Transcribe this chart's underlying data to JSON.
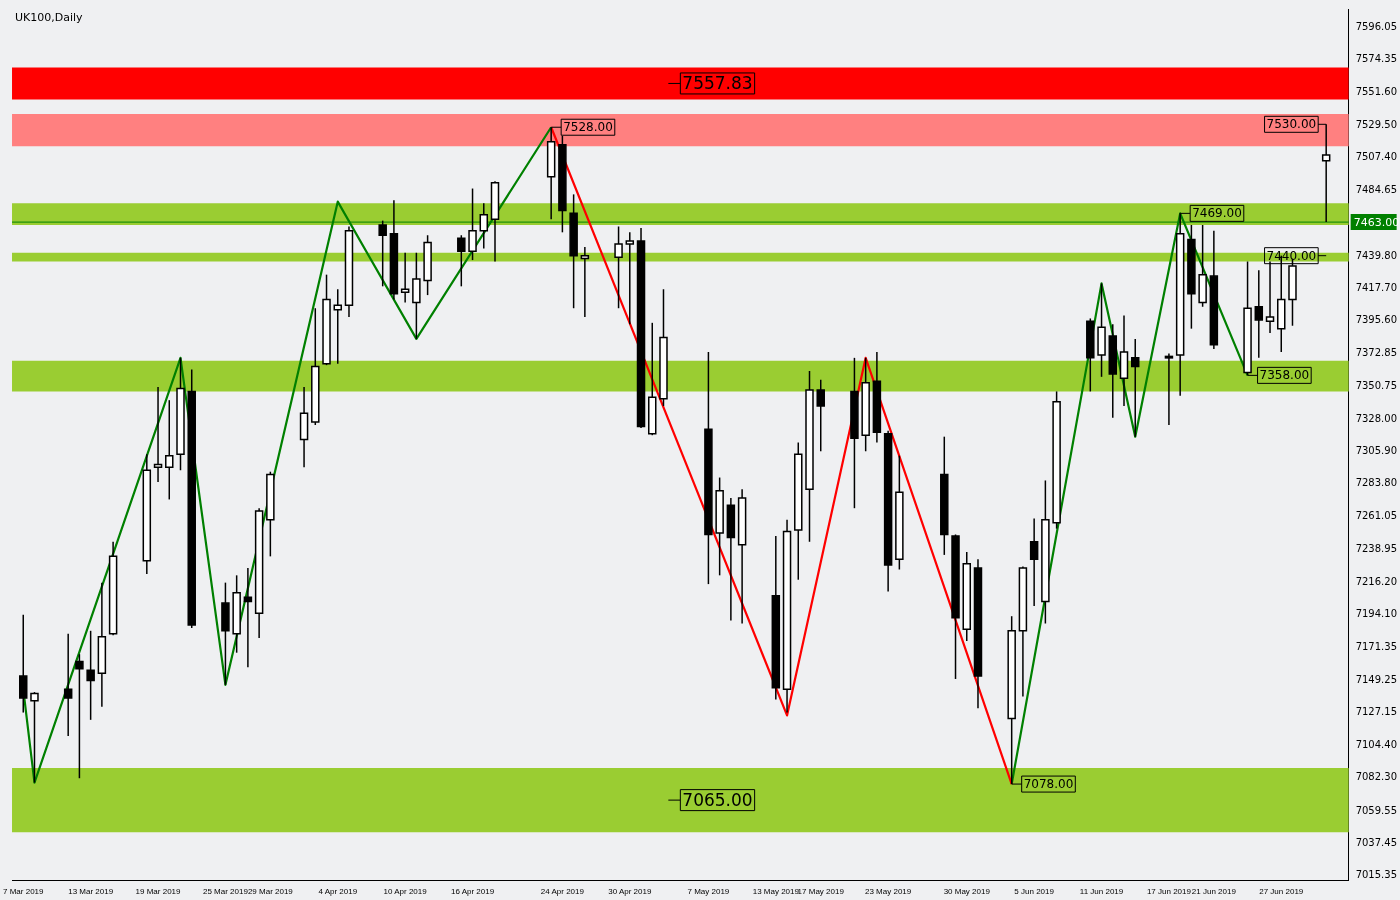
{
  "chart_data": {
    "type": "candlestick",
    "title": "UK100,Daily",
    "x": [
      "2019-03-07",
      "2019-03-08",
      "2019-03-11",
      "2019-03-12",
      "2019-03-13",
      "2019-03-14",
      "2019-03-15",
      "2019-03-18",
      "2019-03-19",
      "2019-03-20",
      "2019-03-21",
      "2019-03-22",
      "2019-03-25",
      "2019-03-26",
      "2019-03-27",
      "2019-03-28",
      "2019-03-29",
      "2019-04-01",
      "2019-04-02",
      "2019-04-03",
      "2019-04-04",
      "2019-04-05",
      "2019-04-08",
      "2019-04-09",
      "2019-04-10",
      "2019-04-11",
      "2019-04-12",
      "2019-04-15",
      "2019-04-16",
      "2019-04-17",
      "2019-04-18",
      "2019-04-23",
      "2019-04-24",
      "2019-04-25",
      "2019-04-26",
      "2019-04-29",
      "2019-04-30",
      "2019-05-01",
      "2019-05-02",
      "2019-05-03",
      "2019-05-07",
      "2019-05-08",
      "2019-05-09",
      "2019-05-10",
      "2019-05-13",
      "2019-05-14",
      "2019-05-15",
      "2019-05-16",
      "2019-05-17",
      "2019-05-20",
      "2019-05-21",
      "2019-05-22",
      "2019-05-23",
      "2019-05-24",
      "2019-05-28",
      "2019-05-29",
      "2019-05-30",
      "2019-05-31",
      "2019-06-03",
      "2019-06-04",
      "2019-06-05",
      "2019-06-06",
      "2019-06-07",
      "2019-06-10",
      "2019-06-11",
      "2019-06-12",
      "2019-06-13",
      "2019-06-14",
      "2019-06-17",
      "2019-06-18",
      "2019-06-19",
      "2019-06-20",
      "2019-06-21",
      "2019-06-24",
      "2019-06-25",
      "2019-06-26",
      "2019-06-27",
      "2019-06-28",
      "2019-07-01"
    ],
    "ohlc": [
      [
        7152,
        7194,
        7127,
        7137
      ],
      [
        7135,
        7141,
        7079,
        7140
      ],
      [
        7143,
        7181,
        7111,
        7137
      ],
      [
        7162,
        7167,
        7082,
        7157
      ],
      [
        7156,
        7183,
        7122,
        7149
      ],
      [
        7154,
        7216,
        7131,
        7179
      ],
      [
        7181,
        7244,
        7180,
        7234
      ],
      [
        7231,
        7304,
        7222,
        7293
      ],
      [
        7295,
        7350,
        7285,
        7297
      ],
      [
        7295,
        7341,
        7273,
        7303
      ],
      [
        7304,
        7370,
        7293,
        7349
      ],
      [
        7347,
        7362,
        7185,
        7187
      ],
      [
        7202,
        7216,
        7146,
        7183
      ],
      [
        7181,
        7221,
        7168,
        7209
      ],
      [
        7206,
        7226,
        7158,
        7203
      ],
      [
        7195,
        7267,
        7178,
        7265
      ],
      [
        7259,
        7292,
        7234,
        7290
      ],
      [
        7314,
        7350,
        7295,
        7332
      ],
      [
        7326,
        7404,
        7324,
        7364
      ],
      [
        7366,
        7427,
        7365,
        7410
      ],
      [
        7403,
        7417,
        7366,
        7406
      ],
      [
        7406,
        7460,
        7398,
        7457
      ],
      [
        7461,
        7464,
        7419,
        7454
      ],
      [
        7455,
        7478,
        7410,
        7414
      ],
      [
        7415,
        7442,
        7408,
        7417
      ],
      [
        7408,
        7442,
        7383,
        7424
      ],
      [
        7423,
        7454,
        7413,
        7449
      ],
      [
        7452,
        7454,
        7419,
        7443
      ],
      [
        7443,
        7486,
        7437,
        7457
      ],
      [
        7457,
        7476,
        7445,
        7468
      ],
      [
        7465,
        7491,
        7436,
        7490
      ],
      [
        7494,
        7528,
        7465,
        7518
      ],
      [
        7516,
        7522,
        7456,
        7471
      ],
      [
        7469,
        7482,
        7404,
        7440
      ],
      [
        7438,
        7446,
        7398,
        7440
      ],
      [
        7439,
        7460,
        7404,
        7448
      ],
      [
        7448,
        7456,
        7393,
        7450
      ],
      [
        7450,
        7459,
        7322,
        7323
      ],
      [
        7318,
        7394,
        7317,
        7343
      ],
      [
        7342,
        7417,
        7337,
        7384
      ],
      [
        7321,
        7374,
        7215,
        7249
      ],
      [
        7250,
        7288,
        7221,
        7279
      ],
      [
        7269,
        7274,
        7190,
        7247
      ],
      [
        7242,
        7280,
        7188,
        7274
      ],
      [
        7207,
        7248,
        7136,
        7144
      ],
      [
        7143,
        7259,
        7127,
        7251
      ],
      [
        7252,
        7312,
        7218,
        7304
      ],
      [
        7280,
        7361,
        7244,
        7348
      ],
      [
        7348,
        7355,
        7306,
        7337
      ],
      [
        7347,
        7370,
        7267,
        7315
      ],
      [
        7317,
        7370,
        7306,
        7353
      ],
      [
        7354,
        7374,
        7312,
        7319
      ],
      [
        7318,
        7320,
        7210,
        7228
      ],
      [
        7232,
        7303,
        7225,
        7278
      ],
      [
        7290,
        7316,
        7235,
        7249
      ],
      [
        7248,
        7249,
        7150,
        7192
      ],
      [
        7184,
        7237,
        7176,
        7229
      ],
      [
        7226,
        7232,
        7130,
        7152
      ],
      [
        7123,
        7193,
        7078,
        7183
      ],
      [
        7183,
        7227,
        7138,
        7226
      ],
      [
        7244,
        7260,
        7200,
        7232
      ],
      [
        7203,
        7286,
        7188,
        7259
      ],
      [
        7257,
        7347,
        7253,
        7340
      ],
      [
        7395,
        7397,
        7347,
        7370
      ],
      [
        7372,
        7421,
        7357,
        7391
      ],
      [
        7385,
        7393,
        7329,
        7359
      ],
      [
        7356,
        7399,
        7337,
        7374
      ],
      [
        7370,
        7383,
        7316,
        7364
      ],
      [
        7370,
        7373,
        7324,
        7371
      ],
      [
        7372,
        7469,
        7344,
        7455
      ],
      [
        7451,
        7461,
        7390,
        7414
      ],
      [
        7408,
        7461,
        7405,
        7427
      ],
      [
        7426,
        7457,
        7376,
        7379
      ],
      [
        7360,
        7436,
        7358,
        7404
      ],
      [
        7405,
        7430,
        7370,
        7396
      ],
      [
        7395,
        7436,
        7387,
        7398
      ],
      [
        7390,
        7440,
        7374,
        7410
      ],
      [
        7410,
        7438,
        7392,
        7433
      ],
      [
        7505,
        7530,
        7463,
        7509
      ]
    ],
    "series": [
      {
        "type": "line",
        "color": "#008000",
        "x": [
          "2019-03-07",
          "2019-03-08",
          "2019-03-21",
          "2019-03-25",
          "2019-04-04",
          "2019-04-11",
          "2019-04-23"
        ],
        "values": [
          7143,
          7079,
          7370,
          7146,
          7477,
          7383,
          7528
        ]
      },
      {
        "type": "line",
        "color": "#ff0000",
        "x": [
          "2019-04-23",
          "2019-05-14",
          "2019-05-21",
          "2019-06-03"
        ],
        "values": [
          7528,
          7125,
          7370,
          7078
        ]
      },
      {
        "type": "line",
        "color": "#008000",
        "x": [
          "2019-06-03",
          "2019-06-11",
          "2019-06-14",
          "2019-06-18",
          "2019-06-24"
        ],
        "values": [
          7078,
          7421,
          7316,
          7469,
          7358
        ]
      }
    ],
    "xlim": [
      "2019-03-06",
      "2019-07-03"
    ],
    "ylim": [
      7012,
      7609
    ],
    "yticks": [
      7596.05,
      7574.35,
      {
        "value": 7551.6,
        "label": "7551.60"
      },
      {
        "value": 7529.5,
        "label": "7529.50"
      },
      {
        "value": 7507.4,
        "label": "7507.40"
      },
      7484.65,
      {
        "value": 7462.55,
        "label": null
      },
      {
        "value": 7439.8,
        "label": "7439.80"
      },
      {
        "value": 7417.7,
        "label": "7417.70"
      },
      {
        "value": 7395.6,
        "label": "7395.60"
      },
      7372.85,
      7350.75,
      {
        "value": 7328,
        "label": "7328.00"
      },
      {
        "value": 7305.9,
        "label": "7305.90"
      },
      {
        "value": 7283.8,
        "label": "7283.80"
      },
      7261.05,
      7238.95,
      {
        "value": 7216.2,
        "label": "7216.20"
      },
      {
        "value": 7194.1,
        "label": "7194.10"
      },
      7171.35,
      7149.25,
      7127.15,
      {
        "value": 7104.4,
        "label": "7104.40"
      },
      {
        "value": 7082.3,
        "label": "7082.30"
      },
      7059.55,
      7037.45,
      7015.35
    ],
    "xticks": [
      {
        "value": "2019-03-07",
        "label": "7 Mar 2019"
      },
      {
        "value": "2019-03-13",
        "label": "13 Mar 2019"
      },
      {
        "value": "2019-03-19",
        "label": "19 Mar 2019"
      },
      {
        "value": "2019-03-25",
        "label": "25 Mar 2019"
      },
      {
        "value": "2019-03-29",
        "label": "29 Mar 2019"
      },
      {
        "value": "2019-04-04",
        "label": "4 Apr 2019"
      },
      {
        "value": "2019-04-10",
        "label": "10 Apr 2019"
      },
      {
        "value": "2019-04-16",
        "label": "16 Apr 2019"
      },
      {
        "value": "2019-04-24",
        "label": "24 Apr 2019"
      },
      {
        "value": "2019-04-30",
        "label": "30 Apr 2019"
      },
      {
        "value": "2019-05-07",
        "label": "7 May 2019"
      },
      {
        "value": "2019-05-13",
        "label": "13 May 2019"
      },
      {
        "value": "2019-05-17",
        "label": "17 May 2019"
      },
      {
        "value": "2019-05-23",
        "label": "23 May 2019"
      },
      {
        "value": "2019-05-30",
        "label": "30 May 2019"
      },
      {
        "value": "2019-06-05",
        "label": "5 Jun 2019"
      },
      {
        "value": "2019-06-11",
        "label": "11 Jun 2019"
      },
      {
        "value": "2019-06-17",
        "label": "17 Jun 2019"
      },
      {
        "value": "2019-06-21",
        "label": "21 Jun 2019"
      },
      {
        "value": "2019-06-27",
        "label": "27 Jun 2019"
      }
    ],
    "bands": [
      {
        "axis": "y",
        "from": 7547,
        "to": 7569,
        "label": "7557.83",
        "color": "#ff0000"
      },
      {
        "axis": "y",
        "from": 7515,
        "to": 7537,
        "color": "#ff8080"
      },
      {
        "axis": "y",
        "from": 7461,
        "to": 7476,
        "color": "#9acd32"
      },
      {
        "axis": "y",
        "from": 7436,
        "to": 7442,
        "color": "#9acd32"
      },
      {
        "axis": "y",
        "from": 7347,
        "to": 7368,
        "color": "#9acd32"
      },
      {
        "axis": "y",
        "from": 7045,
        "to": 7089,
        "label": "7065.00",
        "color": "#9acd32"
      }
    ],
    "ref_lines": [
      {
        "axis": "y",
        "value": 7463,
        "label": "7463.00",
        "color": "#008000"
      }
    ],
    "annotations": [
      {
        "text": "7528.00",
        "x": "2019-04-23",
        "y": 7528
      },
      {
        "text": "7530.00",
        "x": "2019-07-01",
        "y": 7530
      },
      {
        "text": "7469.00",
        "x": "2019-06-18",
        "y": 7469
      },
      {
        "text": "7440.00",
        "x": "2019-07-01",
        "y": 7440
      },
      {
        "text": "7358.00",
        "x": "2019-06-24",
        "y": 7358
      },
      {
        "text": "7078.00",
        "x": "2019-06-03",
        "y": 7078
      }
    ],
    "marker": "none",
    "legend": false,
    "grid": false
  }
}
